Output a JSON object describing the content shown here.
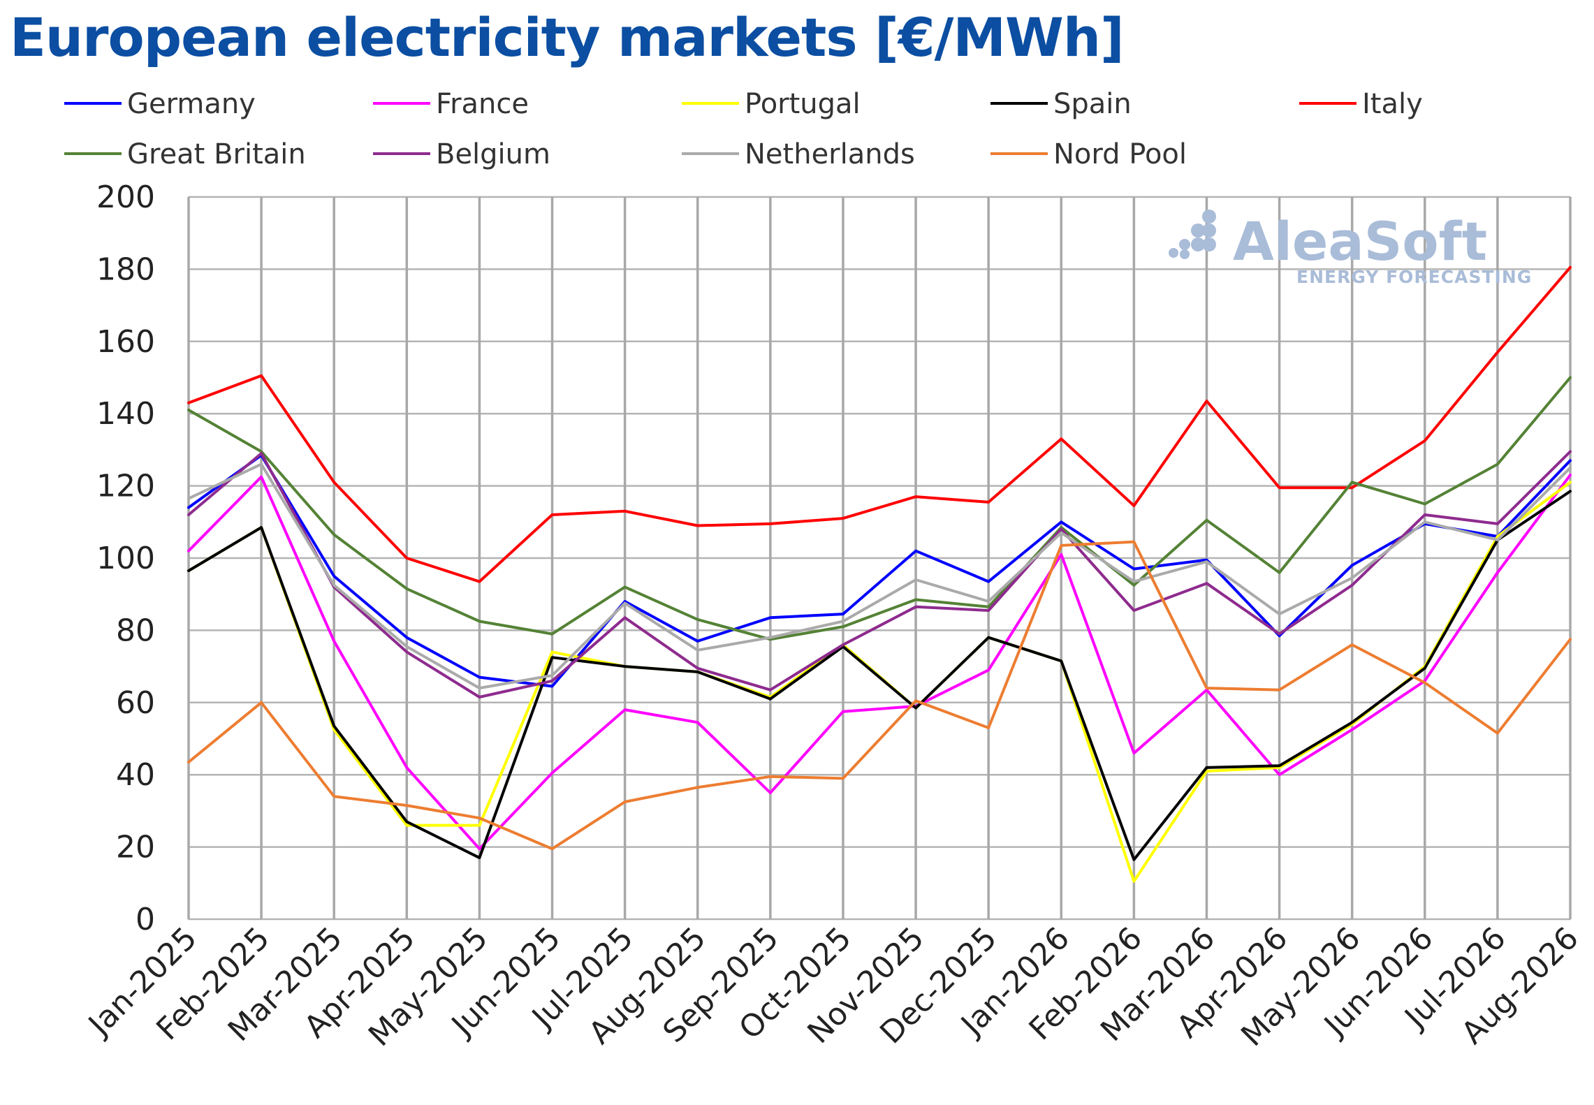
{
  "chart_data": {
    "type": "line",
    "title": "European electricity markets [€/MWh]",
    "xlabel": "",
    "ylabel": "",
    "ylim": [
      0,
      200
    ],
    "yticks": [
      0,
      20,
      40,
      60,
      80,
      100,
      120,
      140,
      160,
      180,
      200
    ],
    "grid": true,
    "legend_position": "top",
    "categories": [
      "Jan-2025",
      "Feb-2025",
      "Mar-2025",
      "Apr-2025",
      "May-2025",
      "Jun-2025",
      "Jul-2025",
      "Aug-2025",
      "Sep-2025",
      "Oct-2025",
      "Nov-2025",
      "Dec-2025",
      "Jan-2026",
      "Feb-2026",
      "Mar-2026",
      "Apr-2026",
      "May-2026",
      "Jun-2026",
      "Jul-2026",
      "Aug-2026"
    ],
    "series": [
      {
        "name": "Germany",
        "color": "#0000ff",
        "values": [
          114,
          128.5,
          95,
          78,
          67,
          64.5,
          88,
          77,
          83.5,
          84.5,
          102,
          93.5,
          110,
          97,
          99.5,
          78.5,
          98,
          109.5,
          106,
          127
        ]
      },
      {
        "name": "France",
        "color": "#ff00ff",
        "values": [
          102,
          122.5,
          77,
          42,
          19.5,
          40.5,
          58,
          54.5,
          35,
          57.5,
          59,
          69,
          101,
          46,
          63.5,
          40,
          52.5,
          66,
          96,
          123
        ]
      },
      {
        "name": "Portugal",
        "color": "#ffff00",
        "values": [
          96.5,
          108.5,
          52.5,
          26,
          26,
          74,
          70,
          68.5,
          61.5,
          76,
          58.5,
          78,
          71.5,
          10.5,
          41,
          42,
          54,
          70,
          106,
          121
        ]
      },
      {
        "name": "Spain",
        "color": "#000000",
        "values": [
          96.5,
          108.5,
          53.5,
          27,
          17,
          72.5,
          70,
          68.5,
          61,
          75.5,
          58.5,
          78,
          71.5,
          16.5,
          42,
          42.5,
          54.5,
          69.5,
          105,
          118.5
        ]
      },
      {
        "name": "Italy",
        "color": "#ff0000",
        "values": [
          143,
          150.5,
          121,
          100,
          93.5,
          112,
          113,
          109,
          109.5,
          111,
          117,
          115.5,
          133,
          114.5,
          143.5,
          119.5,
          119.5,
          132.5,
          157,
          180.5
        ]
      },
      {
        "name": "Great Britain",
        "color": "#548235",
        "values": [
          141,
          129.5,
          106.5,
          91.5,
          82.5,
          79,
          92,
          83,
          77.5,
          81,
          88.5,
          86.5,
          108.5,
          92.5,
          110.5,
          96,
          121,
          115,
          126,
          150
        ]
      },
      {
        "name": "Belgium",
        "color": "#8e2b8e",
        "values": [
          112,
          129,
          92,
          74,
          61.5,
          66,
          83.5,
          69.5,
          63.5,
          76,
          86.5,
          85.5,
          108,
          85.5,
          93,
          79,
          92.5,
          112,
          109.5,
          129.5
        ]
      },
      {
        "name": "Netherlands",
        "color": "#aaaaaa",
        "values": [
          116.5,
          126,
          92.5,
          75.5,
          64,
          67.5,
          87.5,
          74.5,
          78,
          82.5,
          94,
          88,
          107,
          93.5,
          99,
          84.5,
          94.5,
          110,
          105,
          125
        ]
      },
      {
        "name": "Nord Pool",
        "color": "#ed7d31",
        "values": [
          43.5,
          60,
          34,
          31.5,
          28,
          19.5,
          32.5,
          36.5,
          39.5,
          39,
          60.5,
          53,
          103.5,
          104.5,
          64,
          63.5,
          76,
          65.5,
          51.5,
          77.5
        ]
      }
    ]
  },
  "watermark": {
    "brand": "AleaSoft",
    "tagline": "ENERGY FORECASTING"
  }
}
